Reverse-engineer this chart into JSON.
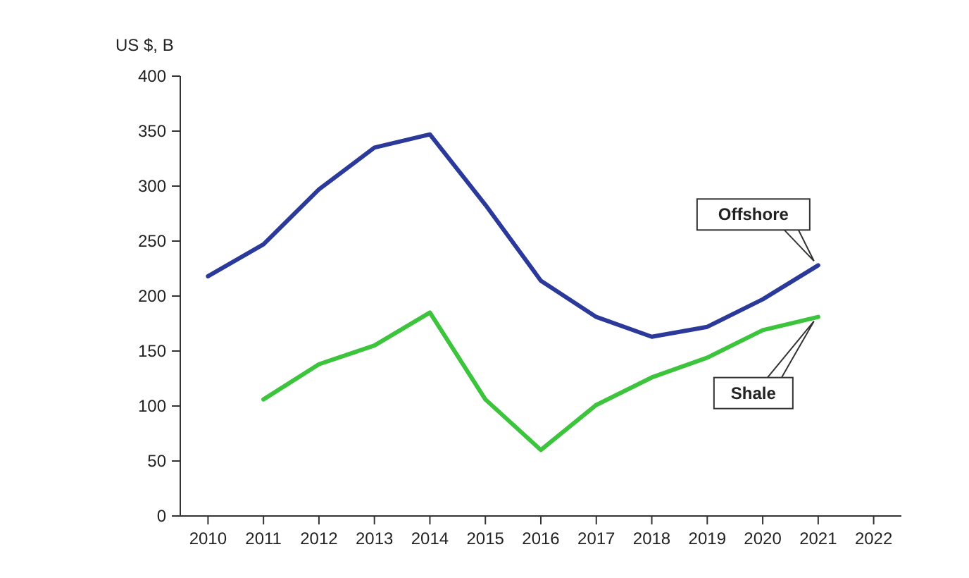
{
  "chart_data": {
    "type": "line",
    "ylabel": "US $, B",
    "x": [
      2010,
      2011,
      2012,
      2013,
      2014,
      2015,
      2016,
      2017,
      2018,
      2019,
      2020,
      2021
    ],
    "xlim": [
      2009.5,
      2022.5
    ],
    "xticks": [
      2010,
      2011,
      2012,
      2013,
      2014,
      2015,
      2016,
      2017,
      2018,
      2019,
      2020,
      2021,
      2022
    ],
    "ylim": [
      0,
      400
    ],
    "yticks": [
      0,
      50,
      100,
      150,
      200,
      250,
      300,
      350,
      400
    ],
    "grid": false,
    "legend": false,
    "marker": "none",
    "line_style": "solid",
    "series": [
      {
        "name": "Offshore",
        "color": "#2b3a9a",
        "values": [
          218,
          247,
          297,
          335,
          347,
          283,
          214,
          181,
          163,
          172,
          197,
          228
        ]
      },
      {
        "name": "Shale",
        "color": "#3cc43c",
        "values": [
          null,
          106,
          138,
          155,
          185,
          106,
          60,
          101,
          126,
          144,
          169,
          181
        ]
      }
    ]
  }
}
